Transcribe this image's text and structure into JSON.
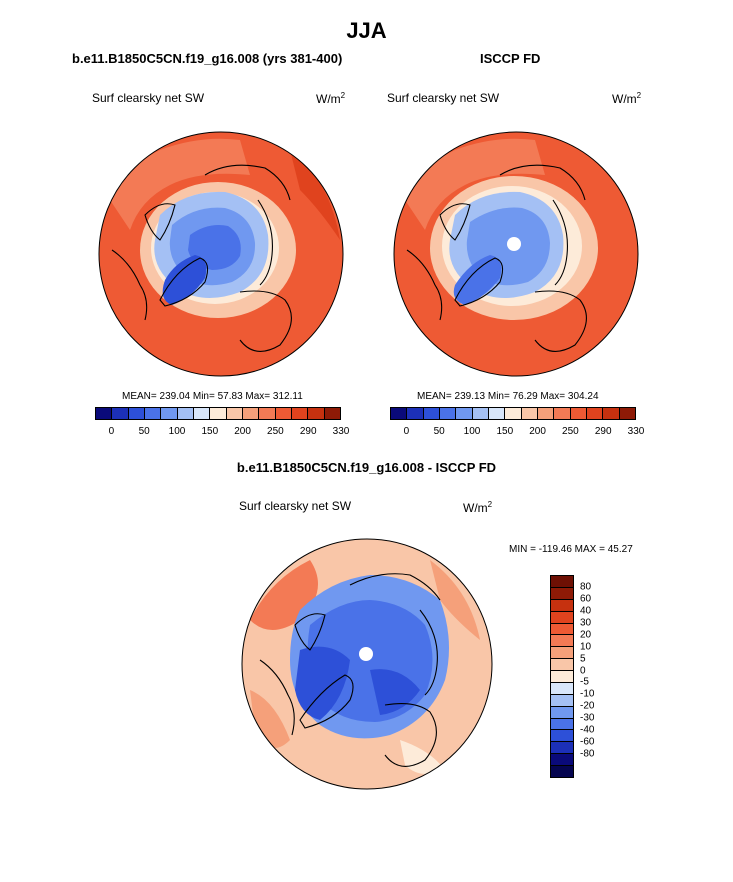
{
  "figure": {
    "title": "JJA",
    "panel_left_title": "b.e11.B1850C5CN.f19_g16.008 (yrs 381-400)",
    "panel_right_title": "ISCCP FD",
    "panel_bottom_title": "b.e11.B1850C5CN.f19_g16.008 - ISCCP FD"
  },
  "panels": {
    "left": {
      "subtitle": "Surf clearsky net SW",
      "unit": "W/m",
      "unit_exp": "2",
      "stats": "MEAN= 239.04  Min=  57.83  Max= 312.11"
    },
    "right": {
      "subtitle": "Surf clearsky net SW",
      "unit": "W/m",
      "unit_exp": "2",
      "stats": "MEAN= 239.13  Min=  76.29  Max= 304.24"
    },
    "bottom": {
      "subtitle": "Surf clearsky net SW",
      "unit": "W/m",
      "unit_exp": "2",
      "stats": "MIN = -119.46 MAX =  45.27"
    }
  },
  "colorbars": {
    "abs_labels": [
      "0",
      "50",
      "100",
      "150",
      "200",
      "250",
      "290",
      "330"
    ],
    "abs_colors": [
      "#0a0a7a",
      "#1c30b8",
      "#2d50d8",
      "#4a72e8",
      "#7098f0",
      "#a4c0f4",
      "#d8e6fa",
      "#fdebd9",
      "#f9c6a8",
      "#f5a07a",
      "#f37a55",
      "#ee5a34",
      "#e0431e",
      "#c6310f",
      "#8e1a06"
    ],
    "diff_labels": [
      "80",
      "60",
      "40",
      "30",
      "20",
      "10",
      "5",
      "0",
      "-5",
      "-10",
      "-20",
      "-30",
      "-40",
      "-60",
      "-80"
    ],
    "diff_colors": [
      "#8e1a06",
      "#c6310f",
      "#e0431e",
      "#ee5a34",
      "#f37a55",
      "#f5a07a",
      "#f9c6a8",
      "#fdebd9",
      "#d8e6fa",
      "#a4c0f4",
      "#7098f0",
      "#4a72e8",
      "#2d50d8",
      "#1c30b8",
      "#0a0a7a"
    ]
  },
  "chart_data": [
    {
      "type": "heatmap",
      "title": "b.e11.B1850C5CN.f19_g16.008 (yrs 381-400)",
      "variable": "Surf clearsky net SW",
      "units": "W/m2",
      "season": "JJA",
      "projection": "north polar stereographic",
      "mean": 239.04,
      "min": 57.83,
      "max": 312.11,
      "contour_levels": [
        0,
        50,
        100,
        150,
        200,
        250,
        290,
        330
      ]
    },
    {
      "type": "heatmap",
      "title": "ISCCP FD",
      "variable": "Surf clearsky net SW",
      "units": "W/m2",
      "season": "JJA",
      "projection": "north polar stereographic",
      "mean": 239.13,
      "min": 76.29,
      "max": 304.24,
      "contour_levels": [
        0,
        50,
        100,
        150,
        200,
        250,
        290,
        330
      ]
    },
    {
      "type": "heatmap",
      "title": "b.e11.B1850C5CN.f19_g16.008 - ISCCP FD",
      "variable": "Surf clearsky net SW",
      "units": "W/m2",
      "season": "JJA",
      "projection": "north polar stereographic",
      "min": -119.46,
      "max": 45.27,
      "contour_levels": [
        -80,
        -60,
        -40,
        -30,
        -20,
        -10,
        -5,
        0,
        5,
        10,
        20,
        30,
        40,
        60,
        80
      ]
    }
  ]
}
